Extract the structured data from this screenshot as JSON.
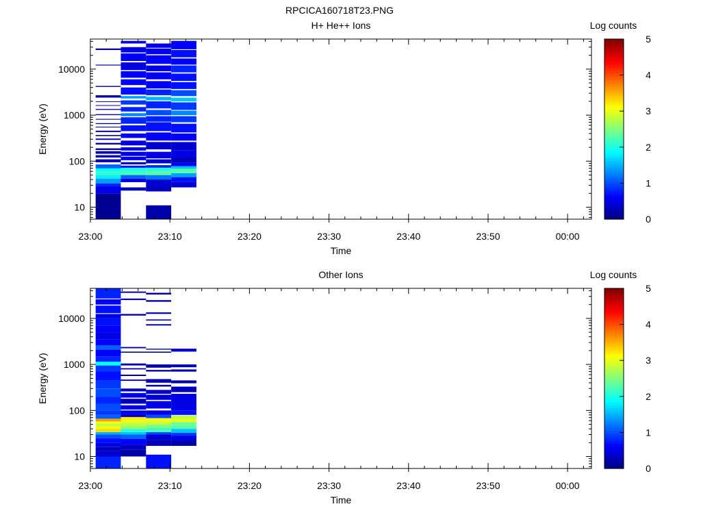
{
  "figure_title": "RPCICA160718T23.PNG",
  "colormap": [
    "#00007f",
    "#0000ff",
    "#007fff",
    "#00ffff",
    "#7fff7f",
    "#ffff00",
    "#ff7f00",
    "#ff0000",
    "#7f0000"
  ],
  "chart_data": [
    {
      "type": "heatmap",
      "title": "H+ He++ Ions",
      "xlabel": "Time",
      "ylabel": "Energy (eV)",
      "x_tick_labels": [
        "23:00",
        "23:10",
        "23:20",
        "23:30",
        "23:40",
        "23:50",
        "00:00"
      ],
      "xlim": [
        "23:00",
        "00:03"
      ],
      "y_scale": "log",
      "y_tick_labels": [
        "10",
        "100",
        "1000",
        "10000"
      ],
      "y_tick_values": [
        10,
        100,
        1000,
        10000
      ],
      "ylim": [
        5.5,
        45000
      ],
      "colorbar": {
        "label": "Log counts",
        "range": [
          0,
          5
        ],
        "tick_labels": [
          "0",
          "1",
          "2",
          "3",
          "4",
          "5"
        ]
      },
      "time_bins": [
        {
          "t_start": "23:00:40",
          "t_end": "23:03:50",
          "bands": [
            [
              5.5,
              20,
              0.1
            ],
            [
              20,
              28,
              0.5
            ],
            [
              28,
              33,
              0.8
            ],
            [
              33,
              42,
              1.4
            ],
            [
              42,
              50,
              1.8
            ],
            [
              50,
              60,
              2.1
            ],
            [
              60,
              70,
              1.9
            ],
            [
              70,
              85,
              1.1
            ],
            [
              95,
              110,
              0.3
            ],
            [
              120,
              135,
              0.2
            ],
            [
              145,
              165,
              0.2
            ],
            [
              175,
              190,
              0.2
            ],
            [
              230,
              250,
              0.2
            ],
            [
              290,
              310,
              0.2
            ],
            [
              350,
              370,
              0.2
            ],
            [
              430,
              460,
              0.2
            ],
            [
              540,
              560,
              0.2
            ],
            [
              640,
              670,
              0.2
            ],
            [
              800,
              830,
              0.2
            ],
            [
              1000,
              1050,
              0.2
            ],
            [
              1300,
              1360,
              0.2
            ],
            [
              1600,
              1650,
              0.2
            ],
            [
              1950,
              2000,
              0.2
            ],
            [
              2400,
              2700,
              0.2
            ],
            [
              4100,
              4300,
              0.2
            ],
            [
              12000,
              12500,
              0.2
            ],
            [
              26000,
              28000,
              0.2
            ]
          ]
        },
        {
          "t_start": "23:03:50",
          "t_end": "23:07:00",
          "bands": [
            [
              23,
              27,
              0.3
            ],
            [
              35,
              42,
              0.5
            ],
            [
              42,
              50,
              1.1
            ],
            [
              50,
              60,
              2.2
            ],
            [
              60,
              72,
              2.0
            ],
            [
              72,
              80,
              0.7
            ],
            [
              85,
              95,
              0.3
            ],
            [
              105,
              125,
              0.6
            ],
            [
              130,
              160,
              0.5
            ],
            [
              170,
              200,
              0.5
            ],
            [
              220,
              280,
              0.5
            ],
            [
              320,
              400,
              0.6
            ],
            [
              450,
              600,
              0.7
            ],
            [
              650,
              900,
              0.8
            ],
            [
              950,
              1100,
              1.3
            ],
            [
              1200,
              1500,
              0.8
            ],
            [
              1700,
              2100,
              0.9
            ],
            [
              2300,
              2600,
              1.4
            ],
            [
              2800,
              4000,
              0.7
            ],
            [
              4500,
              6000,
              0.6
            ],
            [
              6500,
              9000,
              0.6
            ],
            [
              9500,
              14000,
              0.5
            ],
            [
              15000,
              22000,
              0.6
            ],
            [
              23000,
              30000,
              0.5
            ],
            [
              36000,
              41000,
              0.5
            ]
          ]
        },
        {
          "t_start": "23:07:00",
          "t_end": "23:10:10",
          "bands": [
            [
              5.5,
              11,
              0.2
            ],
            [
              22,
              28,
              0.3
            ],
            [
              28,
              40,
              0.4
            ],
            [
              40,
              50,
              1.2
            ],
            [
              50,
              62,
              2.3
            ],
            [
              62,
              72,
              2.0
            ],
            [
              72,
              82,
              0.8
            ],
            [
              90,
              110,
              0.4
            ],
            [
              115,
              160,
              0.5
            ],
            [
              180,
              260,
              0.4
            ],
            [
              280,
              420,
              0.6
            ],
            [
              450,
              700,
              0.7
            ],
            [
              720,
              950,
              0.8
            ],
            [
              1000,
              1300,
              1.0
            ],
            [
              1400,
              2000,
              0.8
            ],
            [
              2100,
              2500,
              1.5
            ],
            [
              2700,
              3600,
              0.8
            ],
            [
              3800,
              5500,
              0.6
            ],
            [
              6000,
              8500,
              0.6
            ],
            [
              9000,
              12000,
              0.5
            ],
            [
              13000,
              20000,
              0.6
            ],
            [
              21000,
              28000,
              0.6
            ],
            [
              29000,
              36000,
              0.5
            ]
          ]
        },
        {
          "t_start": "23:10:10",
          "t_end": "23:13:20",
          "bands": [
            [
              27,
              35,
              0.4
            ],
            [
              35,
              45,
              0.7
            ],
            [
              45,
              55,
              1.4
            ],
            [
              55,
              68,
              2.3
            ],
            [
              68,
              78,
              1.6
            ],
            [
              78,
              92,
              0.6
            ],
            [
              92,
              120,
              0.3
            ],
            [
              120,
              170,
              0.5
            ],
            [
              170,
              260,
              0.4
            ],
            [
              280,
              400,
              0.6
            ],
            [
              420,
              650,
              0.7
            ],
            [
              700,
              950,
              0.9
            ],
            [
              1000,
              1250,
              1.3
            ],
            [
              1300,
              1900,
              0.9
            ],
            [
              2000,
              2400,
              1.6
            ],
            [
              2600,
              3500,
              1.0
            ],
            [
              3700,
              5200,
              0.7
            ],
            [
              5500,
              8000,
              0.7
            ],
            [
              8500,
              12000,
              0.8
            ],
            [
              12500,
              17000,
              0.6
            ],
            [
              18000,
              26000,
              0.7
            ],
            [
              27000,
              41000,
              0.6
            ]
          ]
        }
      ]
    },
    {
      "type": "heatmap",
      "title": "Other Ions",
      "xlabel": "Time",
      "ylabel": "Energy (eV)",
      "x_tick_labels": [
        "23:00",
        "23:10",
        "23:20",
        "23:30",
        "23:40",
        "23:50",
        "00:00"
      ],
      "xlim": [
        "23:00",
        "00:03"
      ],
      "y_scale": "log",
      "y_tick_labels": [
        "10",
        "100",
        "1000",
        "10000"
      ],
      "y_tick_values": [
        10,
        100,
        1000,
        10000
      ],
      "ylim": [
        5.5,
        45000
      ],
      "colorbar": {
        "label": "Log counts",
        "range": [
          0,
          5
        ],
        "tick_labels": [
          "0",
          "1",
          "2",
          "3",
          "4",
          "5"
        ]
      },
      "time_bins": [
        {
          "t_start": "23:00:40",
          "t_end": "23:03:50",
          "bands": [
            [
              5.5,
              10,
              0.8
            ],
            [
              10,
              13,
              0.4
            ],
            [
              13,
              16,
              0.3
            ],
            [
              16,
              20,
              0.5
            ],
            [
              20,
              25,
              0.7
            ],
            [
              25,
              30,
              1.0
            ],
            [
              30,
              34,
              1.5
            ],
            [
              34,
              40,
              3.3
            ],
            [
              40,
              46,
              3.0
            ],
            [
              46,
              52,
              2.8
            ],
            [
              52,
              58,
              3.1
            ],
            [
              58,
              66,
              3.6
            ],
            [
              66,
              80,
              1.1
            ],
            [
              80,
              100,
              0.9
            ],
            [
              100,
              140,
              1.0
            ],
            [
              140,
              200,
              0.8
            ],
            [
              200,
              300,
              1.0
            ],
            [
              300,
              450,
              0.9
            ],
            [
              450,
              700,
              0.7
            ],
            [
              700,
              950,
              0.9
            ],
            [
              950,
              1150,
              1.9
            ],
            [
              1150,
              1500,
              0.8
            ],
            [
              1500,
              2100,
              0.6
            ],
            [
              2100,
              2600,
              1.1
            ],
            [
              2600,
              3500,
              0.6
            ],
            [
              3500,
              5000,
              0.5
            ],
            [
              5000,
              7000,
              0.6
            ],
            [
              7000,
              10000,
              0.7
            ],
            [
              10000,
              12500,
              0.5
            ],
            [
              13000,
              19000,
              0.7
            ],
            [
              20000,
              26000,
              0.6
            ],
            [
              27000,
              45000,
              0.8
            ]
          ]
        },
        {
          "t_start": "23:03:50",
          "t_end": "23:07:00",
          "bands": [
            [
              10,
              14,
              0.2
            ],
            [
              14,
              18,
              0.3
            ],
            [
              18,
              24,
              0.6
            ],
            [
              24,
              30,
              1.1
            ],
            [
              30,
              34,
              1.6
            ],
            [
              34,
              40,
              2.1
            ],
            [
              40,
              46,
              2.6
            ],
            [
              46,
              54,
              2.8
            ],
            [
              54,
              62,
              3.0
            ],
            [
              62,
              72,
              3.2
            ],
            [
              72,
              85,
              0.4
            ],
            [
              85,
              100,
              0.6
            ],
            [
              105,
              130,
              0.5
            ],
            [
              140,
              180,
              0.3
            ],
            [
              190,
              240,
              0.5
            ],
            [
              260,
              300,
              0.3
            ],
            [
              440,
              470,
              0.2
            ],
            [
              560,
              600,
              0.2
            ],
            [
              780,
              830,
              0.2
            ],
            [
              950,
              1050,
              0.2
            ],
            [
              1800,
              1900,
              0.2
            ],
            [
              2250,
              2400,
              0.2
            ],
            [
              11500,
              12500,
              0.2
            ],
            [
              25000,
              27000,
              0.2
            ],
            [
              36000,
              38500,
              0.2
            ]
          ]
        },
        {
          "t_start": "23:07:00",
          "t_end": "23:10:10",
          "bands": [
            [
              5.5,
              11,
              0.7
            ],
            [
              17,
              23,
              0.3
            ],
            [
              23,
              30,
              0.4
            ],
            [
              30,
              34,
              1.0
            ],
            [
              34,
              42,
              2.2
            ],
            [
              42,
              50,
              2.5
            ],
            [
              50,
              58,
              2.9
            ],
            [
              58,
              68,
              3.1
            ],
            [
              68,
              80,
              1.0
            ],
            [
              80,
              100,
              0.5
            ],
            [
              110,
              160,
              0.5
            ],
            [
              170,
              220,
              0.4
            ],
            [
              230,
              280,
              0.4
            ],
            [
              330,
              360,
              0.2
            ],
            [
              400,
              480,
              0.3
            ],
            [
              700,
              760,
              0.2
            ],
            [
              850,
              1000,
              0.2
            ],
            [
              1800,
              1900,
              0.2
            ],
            [
              2100,
              2200,
              0.2
            ],
            [
              7000,
              7500,
              0.2
            ],
            [
              9000,
              9500,
              0.2
            ],
            [
              12500,
              13500,
              0.2
            ],
            [
              23000,
              25000,
              0.2
            ],
            [
              33000,
              36000,
              0.2
            ]
          ]
        },
        {
          "t_start": "23:10:10",
          "t_end": "23:13:20",
          "bands": [
            [
              17,
              22,
              0.2
            ],
            [
              22,
              28,
              0.5
            ],
            [
              28,
              33,
              0.9
            ],
            [
              33,
              40,
              1.6
            ],
            [
              40,
              48,
              2.3
            ],
            [
              48,
              56,
              2.4
            ],
            [
              56,
              66,
              3.0
            ],
            [
              66,
              78,
              2.8
            ],
            [
              80,
              100,
              0.7
            ],
            [
              100,
              150,
              0.5
            ],
            [
              150,
              230,
              0.5
            ],
            [
              250,
              330,
              0.3
            ],
            [
              390,
              450,
              0.2
            ],
            [
              700,
              780,
              0.3
            ],
            [
              870,
              1000,
              0.3
            ],
            [
              1900,
              2200,
              0.4
            ]
          ]
        }
      ]
    }
  ]
}
